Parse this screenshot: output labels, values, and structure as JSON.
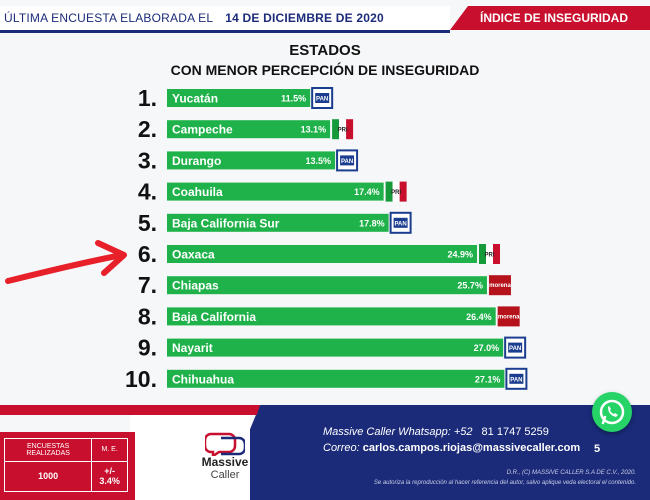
{
  "header": {
    "left_text": "ÚLTIMA ENCUESTA ELABORADA EL",
    "date": "14 DE DICIEMBRE DE 2020",
    "right_text": "ÍNDICE DE INSEGURIDAD"
  },
  "chart_data": {
    "type": "bar",
    "orientation": "horizontal",
    "title": "ESTADOS",
    "subtitle": "CON MENOR PERCEPCIÓN DE INSEGURIDAD",
    "xlabel": "",
    "ylabel": "",
    "xlim": [
      0,
      30
    ],
    "grid": false,
    "legend": "none",
    "bar_color": "#1fb24a",
    "ranks": [
      "1.",
      "2.",
      "3.",
      "4.",
      "5.",
      "6.",
      "7.",
      "8.",
      "9.",
      "10."
    ],
    "categories": [
      "Yucatán",
      "Campeche",
      "Durango",
      "Coahuila",
      "Baja California Sur",
      "Oaxaca",
      "Chiapas",
      "Baja California",
      "Nayarit",
      "Chihuahua"
    ],
    "values": [
      11.5,
      13.1,
      13.5,
      17.4,
      17.8,
      24.9,
      25.7,
      26.4,
      27.0,
      27.1
    ],
    "value_labels": [
      "11.5%",
      "13.1%",
      "13.5%",
      "17.4%",
      "17.8%",
      "24.9%",
      "25.7%",
      "26.4%",
      "27.0%",
      "27.1%"
    ],
    "parties": [
      "PAN",
      "PRI",
      "PAN",
      "PRI",
      "PAN",
      "PRI",
      "morena",
      "morena",
      "PAN",
      "PAN"
    ],
    "party_colors": {
      "PAN": "#1b3d8f",
      "PRI": "#c8102e",
      "morena": "#b5121b"
    }
  },
  "annotation": {
    "type": "arrow",
    "color": "#e8202a",
    "points_to": "Oaxaca"
  },
  "footer": {
    "stats": {
      "surveys_label": "ENCUESTAS REALIZADAS",
      "me_label": "M. E.",
      "surveys_value": "1000",
      "me_value": "+/- 3.4%"
    },
    "brand": {
      "name": "Massive",
      "sub": "Caller"
    },
    "contact_whatsapp_label": "Massive Caller Whatsapp: +52",
    "contact_whatsapp_number": "81 1747 5259",
    "contact_email_label": "Correo:",
    "contact_email": "carlos.campos.riojas@massivecaller.com",
    "page_number": "5",
    "legal_line1": "D.R., (C) MASSIVE CALLER S.A DE C.V., 2020.",
    "legal_line2": "Se autoriza la reproducción al hacer referencia del autor, salvo aplique veda electoral el contenido."
  }
}
